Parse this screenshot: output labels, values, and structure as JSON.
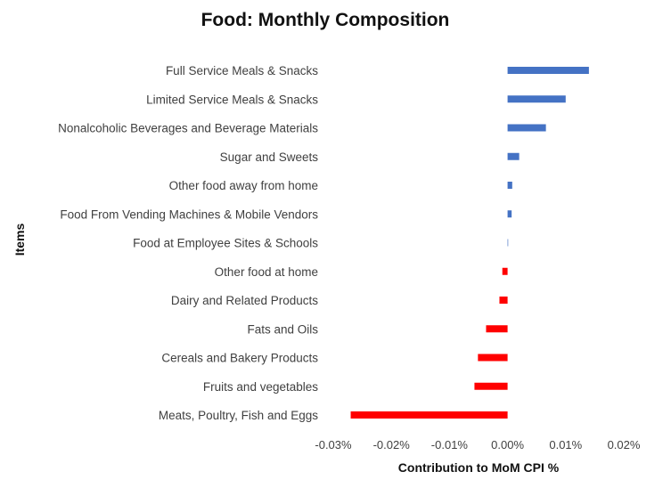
{
  "chart_data": {
    "type": "bar",
    "orientation": "horizontal",
    "title": "Food: Monthly Composition",
    "xlabel": "Contribution to MoM CPI %",
    "ylabel": "Items",
    "xlim": [
      -0.03,
      0.02
    ],
    "xticks": [
      -0.03,
      -0.02,
      -0.01,
      0.0,
      0.01,
      0.02
    ],
    "xtick_labels": [
      "-0.03%",
      "-0.02%",
      "-0.01%",
      "0.00%",
      "0.01%",
      "0.02%"
    ],
    "grid": false,
    "categories": [
      "Full Service Meals & Snacks",
      "Limited Service Meals & Snacks",
      "Nonalcoholic Beverages and Beverage Materials",
      "Sugar and Sweets",
      "Other food away from home",
      "Food From Vending Machines & Mobile Vendors",
      "Food at Employee Sites & Schools",
      "Other food at home",
      "Dairy and Related Products",
      "Fats and Oils",
      "Cereals and Bakery Products",
      "Fruits and vegetables",
      "Meats, Poultry, Fish and Eggs"
    ],
    "values": [
      0.014,
      0.01,
      0.0066,
      0.002,
      0.0008,
      0.0007,
      0.0001,
      -0.0009,
      -0.0014,
      -0.0037,
      -0.0051,
      -0.0057,
      -0.027
    ],
    "colors": {
      "positive": "#4472C4",
      "negative": "#FF0000"
    }
  }
}
